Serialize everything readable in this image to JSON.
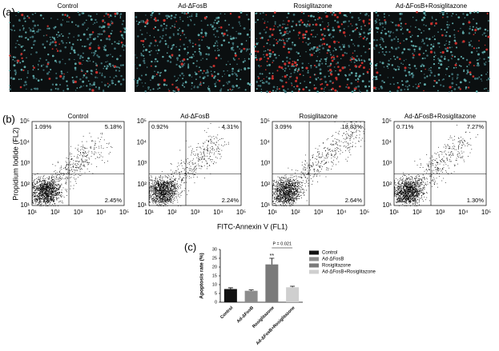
{
  "panel_a": {
    "label": "(a)",
    "images": [
      {
        "title": "Control"
      },
      {
        "title": "Ad-ΔFosB"
      },
      {
        "title": "Rosiglitazone"
      },
      {
        "title": "Ad-ΔFosB+Rosiglitazone"
      }
    ]
  },
  "panel_b": {
    "label": "(b)",
    "ylabel": "Propidium Iodide (FL2)",
    "xlabel": "FITC-Annexin V (FL1)",
    "ticks": [
      "10¹",
      "10²",
      "10³",
      "10⁴",
      "10⁵"
    ],
    "plots": [
      {
        "title": "Control",
        "quadrants": {
          "upper_left": "1.09%",
          "upper_right": "5.18%",
          "lower_right": "2.45%",
          "lower_left": "91.28%"
        }
      },
      {
        "title": "Ad-ΔFosB",
        "quadrants": {
          "upper_left": "0.92%",
          "upper_right": "4.31%",
          "lower_right": "2.24%",
          "lower_left": "92.53%"
        }
      },
      {
        "title": "Rosiglitazone",
        "quadrants": {
          "upper_left": "3.09%",
          "upper_right": "18.83%",
          "lower_right": "2.64%",
          "lower_left": "75.44%"
        }
      },
      {
        "title": "Ad-ΔFosB+Rosiglitazone",
        "quadrants": {
          "upper_left": "0.71%",
          "upper_right": "7.27%",
          "lower_right": "1.30%",
          "lower_left": "90.72%"
        }
      }
    ]
  },
  "chart_data": {
    "type": "bar",
    "label": "(c)",
    "ylabel": "Apoptosis rate (%)",
    "categories": [
      "Control",
      "Ad-ΔFosB",
      "Rosiglitazone",
      "Ad-ΔFosB+Rosiglitazone"
    ],
    "values": [
      7.5,
      6.5,
      21.5,
      8.5
    ],
    "errors": [
      0.7,
      0.5,
      3.5,
      0.6
    ],
    "colors": [
      "#111111",
      "#8c8c8c",
      "#7a7a7a",
      "#cfcfcf"
    ],
    "ylim": [
      0,
      30
    ],
    "yticks": [
      0,
      5,
      10,
      15,
      20,
      25,
      30
    ],
    "annotations": {
      "star": "**",
      "p_value": "P = 0.021"
    }
  }
}
